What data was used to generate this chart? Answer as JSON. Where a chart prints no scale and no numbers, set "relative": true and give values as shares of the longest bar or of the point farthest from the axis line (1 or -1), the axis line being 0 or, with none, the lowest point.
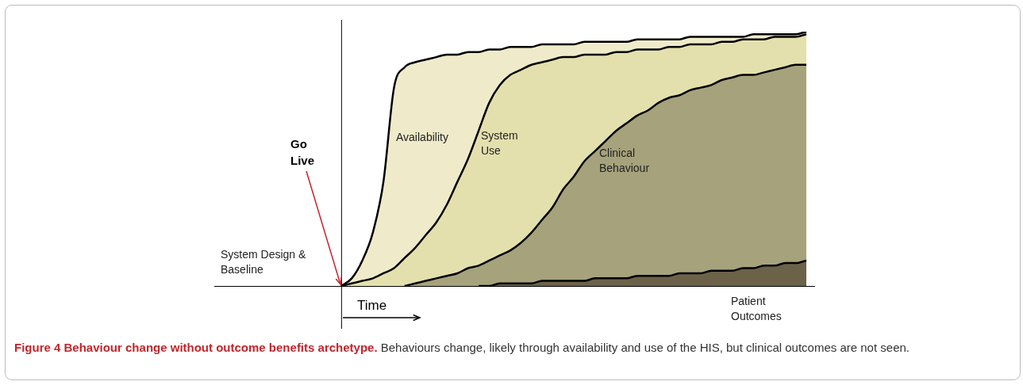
{
  "chart_data": {
    "type": "area",
    "relative": true,
    "title": "Figure 4 Behaviour change without outcome benefits archetype.",
    "xlabel": "Time",
    "annotations": [
      "Go Live",
      "System Design & Baseline",
      "Behaviours change, likely through availability and use of the HIS, but clinical outcomes are not seen."
    ],
    "categories": [
      null,
      null,
      null,
      null,
      null,
      null,
      null,
      null,
      null,
      null,
      null,
      null,
      null,
      null,
      null,
      null,
      null,
      null,
      null,
      null,
      null,
      null,
      null,
      null,
      null,
      null,
      null,
      null,
      null,
      null,
      null,
      null,
      null,
      null,
      null,
      null,
      null,
      null,
      null,
      null,
      null,
      null,
      null,
      null,
      null,
      null,
      null,
      null,
      null,
      null,
      null,
      null,
      null,
      null,
      null,
      null,
      null
    ],
    "series": [
      {
        "name": "Availability",
        "color": "#efebca",
        "values": [
          null,
          null,
          null,
          null,
          null,
          null,
          null,
          null,
          null,
          null,
          null,
          null,
          0,
          0.03,
          0.1,
          0.21,
          0.41,
          0.78,
          0.86,
          0.88,
          0.89,
          0.9,
          0.91,
          0.91,
          0.92,
          0.92,
          0.93,
          0.93,
          0.94,
          0.94,
          0.94,
          0.95,
          0.95,
          0.95,
          0.95,
          0.96,
          0.96,
          0.96,
          0.96,
          0.96,
          0.97,
          0.97,
          0.97,
          0.97,
          0.97,
          0.98,
          0.98,
          0.98,
          0.98,
          0.98,
          0.98,
          0.99,
          0.99,
          0.99,
          0.99,
          0.99,
          1
        ]
      },
      {
        "name": "System Use",
        "color": "#e4e0ad",
        "values": [
          null,
          null,
          null,
          null,
          null,
          null,
          null,
          null,
          null,
          null,
          null,
          null,
          0,
          0.01,
          0.02,
          0.03,
          0.05,
          0.07,
          0.11,
          0.15,
          0.2,
          0.25,
          0.32,
          0.41,
          0.5,
          0.61,
          0.72,
          0.79,
          0.83,
          0.85,
          0.87,
          0.88,
          0.89,
          0.9,
          0.9,
          0.91,
          0.91,
          0.91,
          0.92,
          0.92,
          0.93,
          0.93,
          0.93,
          0.94,
          0.94,
          0.95,
          0.95,
          0.95,
          0.96,
          0.96,
          0.97,
          0.97,
          0.97,
          0.98,
          0.98,
          0.98,
          0.99
        ]
      },
      {
        "name": "Clinical Behaviour",
        "color": "#a6a27b",
        "values": [
          null,
          null,
          null,
          null,
          null,
          null,
          null,
          null,
          null,
          null,
          null,
          null,
          null,
          null,
          null,
          null,
          null,
          null,
          0,
          0.01,
          0.02,
          0.03,
          0.04,
          0.05,
          0.07,
          0.08,
          0.1,
          0.12,
          0.14,
          0.17,
          0.21,
          0.26,
          0.31,
          0.38,
          0.43,
          0.49,
          0.53,
          0.57,
          0.61,
          0.64,
          0.67,
          0.69,
          0.72,
          0.74,
          0.75,
          0.77,
          0.78,
          0.79,
          0.81,
          0.82,
          0.83,
          0.83,
          0.84,
          0.85,
          0.86,
          0.87,
          0.87
        ]
      },
      {
        "name": "Patient Outcomes",
        "color": "#6b6249",
        "values": [
          null,
          null,
          null,
          null,
          null,
          null,
          null,
          null,
          null,
          null,
          null,
          null,
          null,
          null,
          null,
          null,
          null,
          null,
          null,
          null,
          null,
          null,
          null,
          null,
          null,
          0,
          0,
          0.01,
          0.01,
          0.01,
          0.01,
          0.02,
          0.02,
          0.02,
          0.02,
          0.02,
          0.03,
          0.03,
          0.03,
          0.03,
          0.04,
          0.04,
          0.04,
          0.04,
          0.05,
          0.05,
          0.05,
          0.06,
          0.06,
          0.06,
          0.07,
          0.07,
          0.08,
          0.08,
          0.09,
          0.09,
          0.1
        ]
      }
    ]
  }
}
